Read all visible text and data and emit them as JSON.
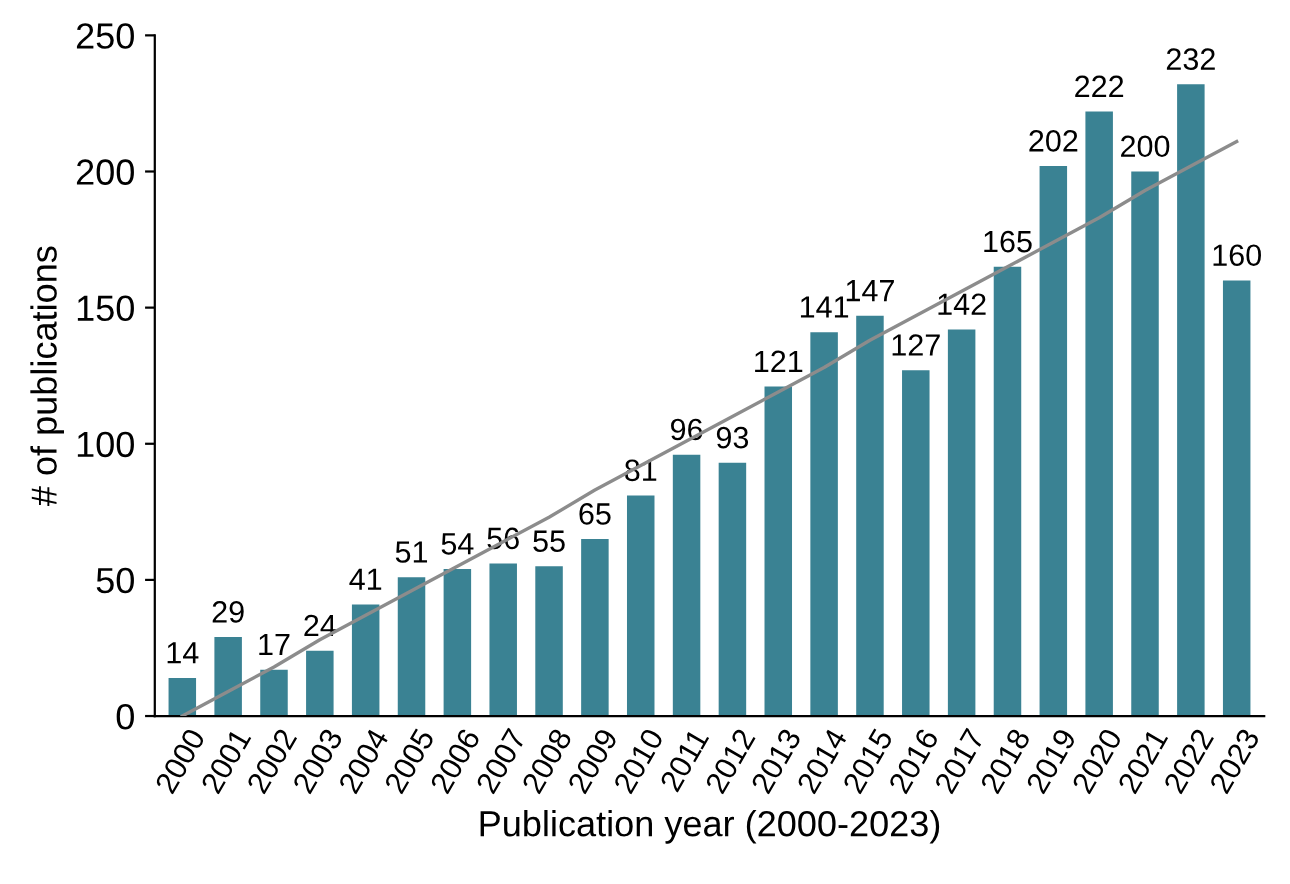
{
  "chart_data": {
    "type": "bar",
    "xlabel": "Publication year (2000-2023)",
    "ylabel": "# of publications",
    "categories": [
      "2000",
      "2001",
      "2002",
      "2003",
      "2004",
      "2005",
      "2006",
      "2007",
      "2008",
      "2009",
      "2010",
      "2011",
      "2012",
      "2013",
      "2014",
      "2015",
      "2016",
      "2017",
      "2018",
      "2019",
      "2020",
      "2021",
      "2022",
      "2023"
    ],
    "series": [
      {
        "color": "#3a8293",
        "values": [
          14,
          29,
          17,
          24,
          41,
          51,
          54,
          56,
          55,
          65,
          81,
          96,
          93,
          121,
          141,
          147,
          127,
          142,
          165,
          202,
          222,
          200,
          232,
          160
        ],
        "value_labels": [
          "14",
          "29",
          "17",
          "24",
          "41",
          "51",
          "54",
          "56",
          "55",
          "65",
          "81",
          "96",
          "93",
          "121",
          "141",
          "147",
          "127",
          "142",
          "165",
          "202",
          "222",
          "200",
          "232",
          "160"
        ]
      },
      {
        "type": "line",
        "color": "#8c8c8c",
        "values": [
          0,
          9,
          18,
          28,
          37,
          46,
          55,
          64,
          73,
          83,
          92,
          101,
          110,
          119,
          128,
          138,
          147,
          156,
          165,
          174,
          183,
          193,
          202,
          211
        ]
      }
    ],
    "ylim": [
      0,
      250
    ],
    "yticks": [
      0,
      50,
      100,
      150,
      200,
      250
    ],
    "grid": false
  }
}
